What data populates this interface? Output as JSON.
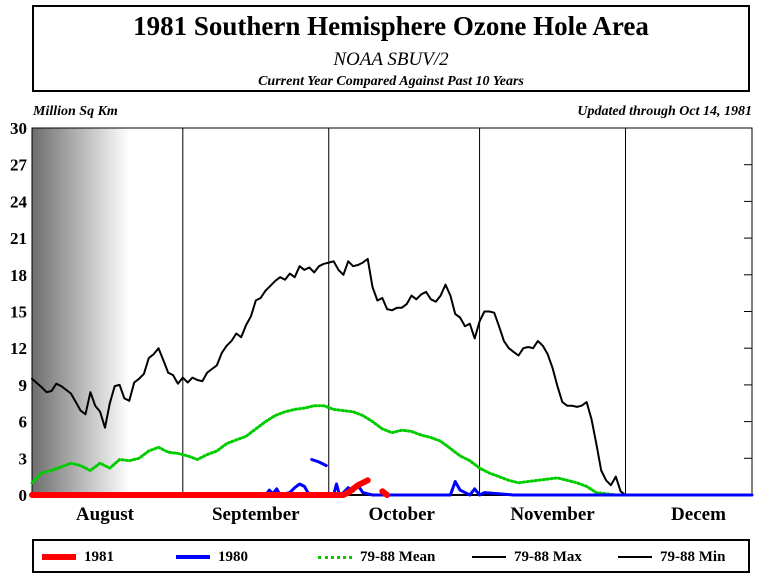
{
  "header": {
    "title": "1981 Southern Hemisphere Ozone Hole Area",
    "subtitle": "NOAA SBUV/2",
    "caption": "Current Year Compared Against Past 10 Years",
    "units": "Million Sq Km",
    "updated": "Updated through Oct 14, 1981"
  },
  "legend": [
    {
      "label": "1981",
      "color": "#ff0000",
      "style": "thick"
    },
    {
      "label": "1980",
      "color": "#0000ff",
      "style": "solid"
    },
    {
      "label": "79-88 Mean",
      "color": "#00cc00",
      "style": "dotted"
    },
    {
      "label": "79-88 Max",
      "color": "#000000",
      "style": "solid"
    },
    {
      "label": "79-88 Min",
      "color": "#000000",
      "style": "solid"
    }
  ],
  "chart_data": {
    "type": "line",
    "xlabel": "",
    "ylabel": "Million Sq Km",
    "ylim": [
      0,
      30
    ],
    "yticks": [
      0,
      3,
      6,
      9,
      12,
      15,
      18,
      21,
      24,
      27,
      30
    ],
    "xlim": [
      0,
      148
    ],
    "month_labels": [
      "August",
      "September",
      "October",
      "November",
      "Decem"
    ],
    "month_ticks": [
      0,
      31,
      61,
      92,
      122
    ],
    "series": [
      {
        "name": "79-88 Max",
        "color": "#000000",
        "dotted": false,
        "x": [
          0,
          2,
          3,
          4,
          5,
          6,
          8,
          9,
          10,
          11,
          12,
          13,
          14,
          15,
          16,
          17,
          18,
          19,
          20,
          21,
          22,
          23,
          24,
          25,
          26,
          27,
          28,
          29,
          30,
          31,
          32,
          33,
          34,
          35,
          36,
          37,
          38,
          39,
          40,
          41,
          42,
          43,
          44,
          45,
          46,
          47,
          48,
          49,
          50,
          51,
          52,
          53,
          54,
          55,
          56,
          57,
          58,
          59,
          60,
          61,
          62,
          63,
          64,
          65,
          66,
          67,
          68,
          69,
          70,
          71,
          72,
          73,
          74,
          75,
          76,
          77,
          78,
          79,
          80,
          81,
          82,
          83,
          84,
          85,
          86,
          87,
          88,
          89,
          90,
          91,
          92,
          93,
          94,
          95,
          96,
          97,
          98,
          99,
          100,
          101,
          102,
          103,
          104,
          105,
          106,
          107,
          108,
          109,
          110,
          111,
          112,
          113,
          114,
          115,
          116,
          117,
          118,
          119,
          120,
          121,
          122
        ],
        "y": [
          9.5,
          8.8,
          8.4,
          8.5,
          9.1,
          8.9,
          8.3,
          7.6,
          6.9,
          6.6,
          8.4,
          7.3,
          6.8,
          5.5,
          7.5,
          8.9,
          9.0,
          7.9,
          7.7,
          9.2,
          9.5,
          9.9,
          11.2,
          11.5,
          12.0,
          11.0,
          10.0,
          9.8,
          9.1,
          9.6,
          9.2,
          9.6,
          9.4,
          9.3,
          10.0,
          10.3,
          10.6,
          11.6,
          12.2,
          12.6,
          13.2,
          12.9,
          13.9,
          14.6,
          15.9,
          16.1,
          16.7,
          17.1,
          17.5,
          17.8,
          17.6,
          18.1,
          17.8,
          18.7,
          18.4,
          18.6,
          18.2,
          18.7,
          18.9,
          19.0,
          19.1,
          18.4,
          18.0,
          19.1,
          18.7,
          18.8,
          19.0,
          19.3,
          17.0,
          15.9,
          16.1,
          15.2,
          15.1,
          15.3,
          15.3,
          15.6,
          16.3,
          16.0,
          16.4,
          16.6,
          16.0,
          15.8,
          16.3,
          17.2,
          16.3,
          14.8,
          14.5,
          13.8,
          14.0,
          12.8,
          14.2,
          15.0,
          15.0,
          14.9,
          13.8,
          12.6,
          12.0,
          11.7,
          11.4,
          12.0,
          12.1,
          12.0,
          12.6,
          12.2,
          11.5,
          10.4,
          8.9,
          7.6,
          7.3,
          7.3,
          7.2,
          7.3,
          7.6,
          6.2,
          4.2,
          2.0,
          1.2,
          0.8,
          1.5,
          0.3,
          0.0
        ]
      },
      {
        "name": "79-88 Min",
        "color": "#000000",
        "dotted": false,
        "x": [
          0,
          148
        ],
        "y": [
          0,
          0
        ]
      },
      {
        "name": "79-88 Mean",
        "color": "#00cc00",
        "dotted": true,
        "x": [
          0,
          2,
          4,
          6,
          8,
          10,
          12,
          14,
          16,
          18,
          20,
          22,
          24,
          26,
          28,
          30,
          32,
          34,
          36,
          38,
          40,
          42,
          44,
          46,
          48,
          50,
          52,
          54,
          56,
          58,
          60,
          62,
          64,
          66,
          68,
          70,
          72,
          74,
          76,
          78,
          80,
          82,
          84,
          86,
          88,
          90,
          92,
          94,
          96,
          98,
          100,
          102,
          104,
          106,
          108,
          110,
          112,
          114,
          116,
          118,
          120,
          122,
          124,
          126,
          128,
          130
        ],
        "y": [
          1.0,
          1.8,
          2.0,
          2.3,
          2.6,
          2.4,
          2.0,
          2.6,
          2.2,
          2.9,
          2.8,
          3.0,
          3.6,
          3.9,
          3.5,
          3.4,
          3.2,
          2.9,
          3.3,
          3.6,
          4.2,
          4.5,
          4.8,
          5.4,
          6.0,
          6.5,
          6.8,
          7.0,
          7.1,
          7.3,
          7.3,
          7.0,
          6.9,
          6.8,
          6.5,
          6.0,
          5.4,
          5.1,
          5.3,
          5.2,
          4.9,
          4.7,
          4.4,
          3.8,
          3.2,
          2.8,
          2.2,
          1.8,
          1.5,
          1.2,
          1.0,
          1.1,
          1.2,
          1.3,
          1.4,
          1.2,
          1.0,
          0.7,
          0.2,
          0.1,
          0.0,
          0.0,
          0.0,
          0.0,
          0.0,
          0.0
        ]
      },
      {
        "name": "1980",
        "color": "#0000ff",
        "dotted": false,
        "x": [
          0,
          48,
          48.8,
          49.5,
          50.3,
          51,
          53,
          54,
          55,
          56,
          57,
          58,
          61,
          62,
          62.6,
          63.2,
          64,
          65,
          66,
          67,
          68,
          69,
          70,
          71,
          72,
          73,
          74,
          75,
          76,
          77,
          85,
          86,
          87,
          88,
          89,
          90,
          91,
          92,
          93,
          99,
          148
        ],
        "y": [
          0,
          0,
          0.4,
          0.1,
          0.5,
          0.0,
          0.2,
          0.6,
          0.9,
          0.7,
          0.0,
          0,
          0,
          0,
          0.9,
          0.0,
          0.2,
          0.6,
          0.3,
          0.8,
          0.2,
          0.1,
          0,
          0,
          0,
          0,
          0,
          0,
          0,
          0,
          0,
          0,
          1.1,
          0.4,
          0.2,
          0.0,
          0.5,
          0.0,
          0.2,
          0,
          0
        ]
      },
      {
        "name": "1980",
        "color": "#0000ff",
        "dotted": false,
        "x": [
          57.5,
          59,
          60.5
        ],
        "y": [
          2.9,
          2.7,
          2.4
        ]
      },
      {
        "name": "1981",
        "color": "#ff0000",
        "dotted": false,
        "x": [
          0,
          55,
          58,
          62,
          64,
          65,
          66,
          67,
          68,
          69
        ],
        "y": [
          0,
          0,
          0,
          0,
          0,
          0.2,
          0.5,
          0.8,
          1.0,
          1.2
        ]
      },
      {
        "name": "1981",
        "color": "#ff0000",
        "dotted": false,
        "x": [
          72,
          73
        ],
        "y": [
          0.3,
          0.0
        ]
      }
    ]
  }
}
